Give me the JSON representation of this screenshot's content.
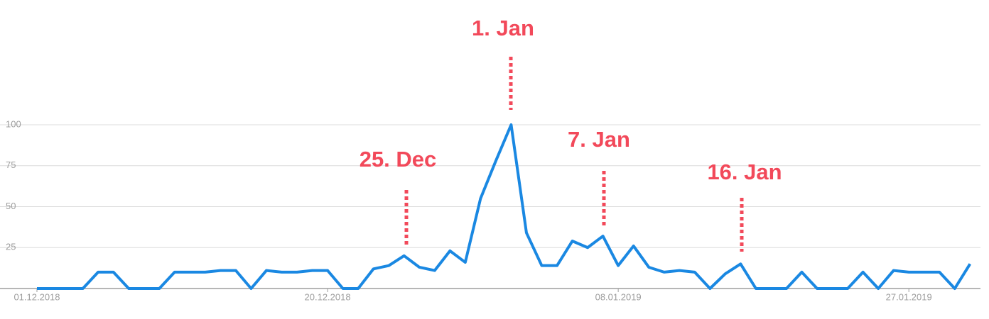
{
  "chart_data": {
    "type": "line",
    "categories": [
      "01.12.2018",
      null,
      null,
      null,
      null,
      null,
      null,
      null,
      null,
      null,
      null,
      null,
      null,
      null,
      null,
      null,
      null,
      null,
      null,
      "20.12.2018",
      null,
      null,
      null,
      null,
      null,
      null,
      null,
      null,
      null,
      null,
      null,
      null,
      null,
      null,
      null,
      null,
      null,
      null,
      "08.01.2019",
      null,
      null,
      null,
      null,
      null,
      null,
      null,
      null,
      null,
      null,
      null,
      null,
      null,
      null,
      null,
      null,
      null,
      null,
      "27.01.2019",
      null,
      null,
      null,
      null
    ],
    "series": [
      {
        "color": "#1a88e2",
        "values": [
          0,
          0,
          0,
          0,
          10,
          10,
          0,
          0,
          0,
          10,
          10,
          10,
          11,
          11,
          0,
          11,
          10,
          10,
          11,
          11,
          0,
          0,
          12,
          14,
          20,
          13,
          11,
          23,
          16,
          55,
          78,
          100,
          34,
          14,
          14,
          29,
          25,
          32,
          14,
          26,
          13,
          10,
          11,
          10,
          0,
          9,
          15,
          0,
          0,
          0,
          10,
          0,
          0,
          0,
          10,
          0,
          11,
          10,
          10,
          10,
          0,
          15
        ]
      }
    ],
    "ylim": [
      0,
      100
    ],
    "yticks": [
      25,
      50,
      75,
      100
    ],
    "grid": true,
    "annotations": [
      {
        "text": "25. Dec"
      },
      {
        "text": "1. Jan"
      },
      {
        "text": "7. Jan"
      },
      {
        "text": "16. Jan"
      }
    ]
  }
}
